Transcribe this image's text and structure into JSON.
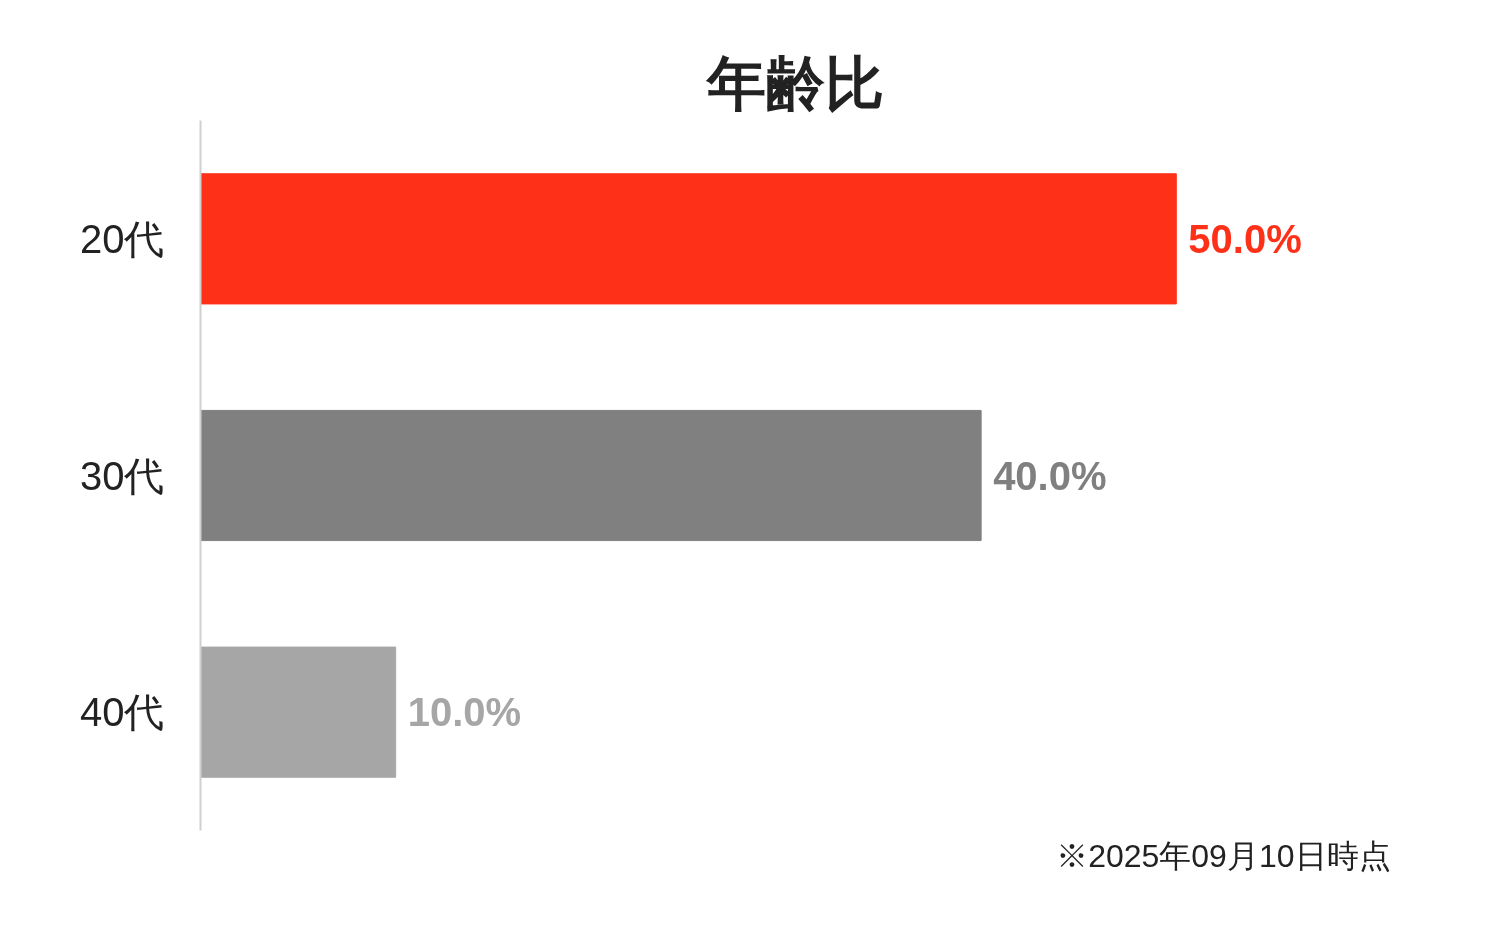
{
  "chart_data": {
    "type": "bar",
    "orientation": "horizontal",
    "title": "年齢比",
    "categories": [
      "20代",
      "30代",
      "40代"
    ],
    "values": [
      50,
      40,
      10
    ],
    "colors": [
      "#fe3118",
      "#808080",
      "#a6a6a6"
    ],
    "value_labels": [
      "50.0%",
      "40.0%",
      "10.0%"
    ],
    "grid": false,
    "tick_labels": "y",
    "annotations": [
      "※2025年09月10日時点"
    ]
  }
}
